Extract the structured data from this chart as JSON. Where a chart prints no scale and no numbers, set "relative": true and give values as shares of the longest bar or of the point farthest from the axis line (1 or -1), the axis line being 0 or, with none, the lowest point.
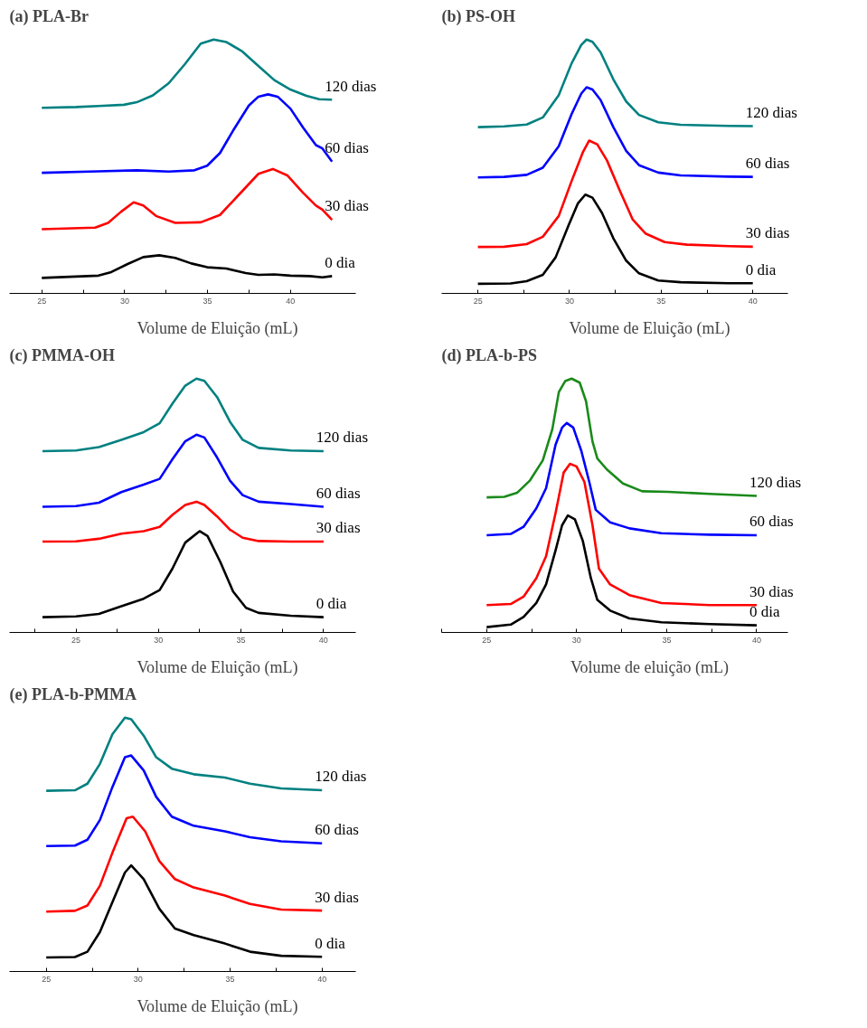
{
  "chart_data": [
    {
      "type": "line",
      "title": "(a) PLA-Br",
      "xlabel": "Volume de Eluição (mL)",
      "relative": true,
      "xlim": [
        23.05,
        43.96
      ],
      "xticks": [
        25,
        {
          "value": 27.5,
          "label": null
        },
        30,
        {
          "value": 32.5,
          "label": null
        },
        35,
        {
          "value": 37.5,
          "label": null
        },
        40
      ],
      "series": [
        {
          "name": "120 dias",
          "color": "#008080",
          "x": [
            25,
            27.07,
            28.42,
            29.96,
            30.73,
            31.7,
            32.66,
            33.63,
            34.59,
            35.37,
            36.14,
            37.1,
            38.07,
            39.03,
            40.0,
            40.97,
            41.74,
            42.51
          ],
          "values": [
            0.731,
            0.734,
            0.738,
            0.743,
            0.753,
            0.78,
            0.828,
            0.903,
            0.984,
            1.0,
            0.99,
            0.953,
            0.896,
            0.84,
            0.803,
            0.778,
            0.765,
            0.763
          ]
        },
        {
          "name": "60 dias",
          "color": "#0000ff",
          "x": [
            25,
            28.42,
            30.73,
            32.66,
            34.21,
            34.98,
            35.75,
            36.53,
            37.49,
            38.07,
            38.65,
            39.23,
            40.0,
            40.77,
            41.54,
            41.93,
            42.51
          ],
          "values": [
            0.475,
            0.481,
            0.485,
            0.48,
            0.485,
            0.503,
            0.553,
            0.64,
            0.74,
            0.775,
            0.784,
            0.775,
            0.728,
            0.653,
            0.584,
            0.571,
            0.519
          ]
        },
        {
          "name": "30 dias",
          "color": "#ff0000",
          "x": [
            25,
            28.22,
            29.0,
            29.77,
            30.54,
            31.12,
            31.89,
            33.05,
            34.59,
            35.75,
            36.91,
            38.07,
            38.94,
            39.81,
            40.77,
            41.54,
            41.93,
            42.51
          ],
          "values": [
            0.253,
            0.259,
            0.278,
            0.321,
            0.359,
            0.346,
            0.305,
            0.278,
            0.28,
            0.309,
            0.39,
            0.471,
            0.49,
            0.465,
            0.396,
            0.346,
            0.33,
            0.29
          ]
        },
        {
          "name": "0 dia",
          "color": "#000000",
          "x": [
            25,
            28.42,
            29.19,
            30.15,
            31.12,
            32.08,
            33.05,
            34.02,
            34.98,
            36.14,
            37.3,
            38.07,
            39.03,
            40.0,
            41.16,
            41.93,
            42.51
          ],
          "values": [
            0.061,
            0.07,
            0.084,
            0.115,
            0.143,
            0.15,
            0.14,
            0.118,
            0.103,
            0.098,
            0.08,
            0.073,
            0.075,
            0.07,
            0.068,
            0.063,
            0.068
          ]
        }
      ]
    },
    {
      "type": "line",
      "title": "(b) PS-OH",
      "xlabel": "Volume de Eluição (mL)",
      "relative": true,
      "xlim": [
        23.02,
        41.93
      ],
      "xticks": [
        25,
        {
          "value": 27.5,
          "label": null
        },
        30,
        {
          "value": 32.5,
          "label": null
        },
        35,
        {
          "value": 37.5,
          "label": null
        },
        40
      ],
      "series": [
        {
          "name": "120 dias",
          "color": "#008080",
          "x": [
            25,
            26.44,
            27.66,
            28.54,
            29.41,
            30.11,
            30.64,
            30.93,
            31.25,
            31.69,
            32.39,
            33.09,
            33.79,
            34.84,
            36.06,
            38.69,
            40
          ],
          "values": [
            0.655,
            0.658,
            0.665,
            0.693,
            0.781,
            0.906,
            0.979,
            1.0,
            0.991,
            0.95,
            0.843,
            0.756,
            0.703,
            0.674,
            0.664,
            0.66,
            0.659
          ]
        },
        {
          "name": "60 dias",
          "color": "#0000ff",
          "x": [
            25,
            26.44,
            27.66,
            28.54,
            29.41,
            30.11,
            30.64,
            30.93,
            31.25,
            31.69,
            32.39,
            33.09,
            33.79,
            34.84,
            36.06,
            38.69,
            40
          ],
          "values": [
            0.457,
            0.459,
            0.467,
            0.495,
            0.58,
            0.706,
            0.787,
            0.812,
            0.803,
            0.762,
            0.655,
            0.561,
            0.505,
            0.476,
            0.465,
            0.46,
            0.459
          ]
        },
        {
          "name": "30 dias",
          "color": "#ff0000",
          "x": [
            25,
            26.44,
            27.66,
            28.54,
            29.41,
            30.11,
            30.72,
            31.07,
            31.51,
            32.04,
            32.74,
            33.44,
            34.14,
            35.19,
            36.41,
            38.69,
            40
          ],
          "values": [
            0.183,
            0.184,
            0.194,
            0.223,
            0.305,
            0.442,
            0.555,
            0.602,
            0.587,
            0.524,
            0.405,
            0.292,
            0.236,
            0.202,
            0.192,
            0.186,
            0.184
          ]
        },
        {
          "name": "0 dia",
          "color": "#000000",
          "x": [
            25,
            26.79,
            27.66,
            28.54,
            29.24,
            29.94,
            30.46,
            30.86,
            31.25,
            31.77,
            32.39,
            33.09,
            33.79,
            34.84,
            36.06,
            38.69,
            40
          ],
          "values": [
            0.038,
            0.039,
            0.048,
            0.073,
            0.142,
            0.267,
            0.355,
            0.389,
            0.377,
            0.317,
            0.217,
            0.129,
            0.079,
            0.051,
            0.044,
            0.04,
            0.04
          ]
        }
      ]
    },
    {
      "type": "line",
      "title": "(c) PMMA-OH",
      "xlabel": "Volume de Eluição (mL)",
      "relative": true,
      "xlim": [
        20.97,
        41.97
      ],
      "xticks": [
        {
          "value": 22.5,
          "label": null
        },
        25,
        {
          "value": 27.5,
          "label": null
        },
        30,
        {
          "value": 32.5,
          "label": null
        },
        35,
        {
          "value": 37.5,
          "label": null
        },
        40
      ],
      "series": [
        {
          "name": "120 dias",
          "color": "#008080",
          "x": [
            22.97,
            25,
            26.39,
            27.75,
            29.1,
            30.07,
            30.84,
            31.62,
            32.3,
            32.78,
            33.55,
            34.33,
            35.1,
            36.07,
            38.01,
            40
          ],
          "values": [
            0.714,
            0.717,
            0.73,
            0.759,
            0.789,
            0.824,
            0.901,
            0.972,
            1.0,
            0.991,
            0.927,
            0.83,
            0.759,
            0.727,
            0.717,
            0.714
          ]
        },
        {
          "name": "60 dias",
          "color": "#0000ff",
          "x": [
            22.97,
            25,
            26.39,
            27.75,
            29.1,
            30.07,
            30.84,
            31.62,
            32.3,
            32.78,
            33.55,
            34.33,
            35.1,
            36.07,
            38.01,
            40
          ],
          "values": [
            0.495,
            0.498,
            0.511,
            0.553,
            0.582,
            0.605,
            0.682,
            0.753,
            0.779,
            0.768,
            0.689,
            0.598,
            0.541,
            0.515,
            0.506,
            0.495
          ]
        },
        {
          "name": "30 dias",
          "color": "#ff0000",
          "x": [
            22.97,
            25,
            26.39,
            27.75,
            29.1,
            30.07,
            30.84,
            31.62,
            32.3,
            32.78,
            33.55,
            34.33,
            35.1,
            36.07,
            38.01,
            40
          ],
          "values": [
            0.358,
            0.359,
            0.369,
            0.389,
            0.399,
            0.416,
            0.463,
            0.502,
            0.515,
            0.502,
            0.457,
            0.405,
            0.373,
            0.36,
            0.358,
            0.358
          ]
        },
        {
          "name": "0 dia",
          "color": "#000000",
          "x": [
            22.97,
            25,
            26.39,
            27.75,
            29.1,
            30.07,
            30.84,
            31.62,
            32.49,
            32.97,
            33.75,
            34.52,
            35.3,
            36.07,
            38.01,
            40
          ],
          "values": [
            0.06,
            0.063,
            0.073,
            0.103,
            0.133,
            0.167,
            0.251,
            0.354,
            0.399,
            0.38,
            0.277,
            0.161,
            0.097,
            0.077,
            0.066,
            0.06
          ]
        }
      ]
    },
    {
      "type": "line",
      "title": "(d) PLA-b-PS",
      "xlabel": "Volume de eluição (mL)",
      "relative": true,
      "xlim": [
        22.5,
        41.75
      ],
      "xticks": [
        {
          "value": 22.5,
          "label": null
        },
        25,
        {
          "value": 27.5,
          "label": null
        },
        30,
        {
          "value": 32.5,
          "label": null
        },
        35,
        {
          "value": 37.5,
          "label": null
        },
        40
      ],
      "series": [
        {
          "name": "120 dias",
          "color": "#1a8a1a",
          "x": [
            25,
            25.98,
            26.69,
            27.41,
            28.12,
            28.65,
            29.01,
            29.36,
            29.72,
            30.17,
            30.52,
            30.88,
            31.15,
            31.68,
            32.57,
            33.64,
            35.07,
            37.38,
            40
          ],
          "values": [
            0.532,
            0.534,
            0.55,
            0.599,
            0.678,
            0.801,
            0.947,
            0.99,
            1.0,
            0.984,
            0.911,
            0.752,
            0.685,
            0.642,
            0.587,
            0.556,
            0.554,
            0.546,
            0.538
          ]
        },
        {
          "name": "60 dias",
          "color": "#0000ff",
          "x": [
            25,
            26.34,
            27.05,
            27.76,
            28.3,
            28.83,
            29.19,
            29.45,
            29.81,
            30.26,
            30.7,
            31.06,
            31.86,
            32.93,
            34.71,
            37.38,
            40
          ],
          "values": [
            0.383,
            0.388,
            0.416,
            0.489,
            0.568,
            0.74,
            0.807,
            0.825,
            0.807,
            0.715,
            0.593,
            0.483,
            0.434,
            0.41,
            0.391,
            0.385,
            0.383
          ]
        },
        {
          "name": "30 dias",
          "color": "#ff0000",
          "x": [
            25,
            26.34,
            27.05,
            27.76,
            28.3,
            28.83,
            29.28,
            29.63,
            29.99,
            30.43,
            30.88,
            31.24,
            31.86,
            32.93,
            34.71,
            37.38,
            40
          ],
          "values": [
            0.108,
            0.112,
            0.141,
            0.214,
            0.3,
            0.471,
            0.63,
            0.664,
            0.654,
            0.593,
            0.422,
            0.251,
            0.189,
            0.147,
            0.116,
            0.108,
            0.108
          ]
        },
        {
          "name": "0 dia",
          "color": "#000000",
          "x": [
            25,
            26.34,
            27.05,
            27.76,
            28.3,
            28.83,
            29.19,
            29.51,
            29.9,
            30.34,
            30.79,
            31.15,
            31.86,
            32.93,
            34.71,
            37.38,
            40
          ],
          "values": [
            0.021,
            0.031,
            0.061,
            0.116,
            0.189,
            0.324,
            0.422,
            0.461,
            0.446,
            0.361,
            0.214,
            0.128,
            0.086,
            0.055,
            0.04,
            0.033,
            0.028
          ]
        }
      ]
    },
    {
      "type": "line",
      "title": "(e) PLA-b-PMMA",
      "xlabel": "Volume de Eluição (mL)",
      "relative": true,
      "xlim": [
        23.0,
        41.85
      ],
      "xticks": [
        25,
        {
          "value": 27.5,
          "label": null
        },
        30,
        {
          "value": 32.5,
          "label": null
        },
        35,
        {
          "value": 37.5,
          "label": null
        },
        40
      ],
      "series": [
        {
          "name": "120 dias",
          "color": "#008080",
          "x": [
            25,
            26.56,
            27.24,
            27.92,
            28.6,
            29.28,
            29.62,
            30.3,
            30.98,
            31.83,
            33.02,
            34.72,
            36.08,
            37.77,
            40
          ],
          "values": [
            0.712,
            0.714,
            0.74,
            0.818,
            0.935,
            1.0,
            0.994,
            0.929,
            0.844,
            0.799,
            0.777,
            0.764,
            0.74,
            0.721,
            0.714
          ]
        },
        {
          "name": "60 dias",
          "color": "#0000ff",
          "x": [
            25,
            26.56,
            27.24,
            27.92,
            28.6,
            29.28,
            29.62,
            30.3,
            30.98,
            31.83,
            32.68,
            33.02,
            34.72,
            36.08,
            37.77,
            40
          ],
          "values": [
            0.494,
            0.496,
            0.519,
            0.597,
            0.727,
            0.844,
            0.851,
            0.792,
            0.688,
            0.61,
            0.584,
            0.574,
            0.552,
            0.529,
            0.513,
            0.505
          ]
        },
        {
          "name": "30 dias",
          "color": "#ff0000",
          "x": [
            25,
            26.56,
            27.24,
            27.92,
            28.6,
            29.37,
            29.71,
            30.38,
            31.15,
            32.0,
            33.02,
            34.72,
            36.08,
            37.77,
            40
          ],
          "values": [
            0.236,
            0.239,
            0.26,
            0.338,
            0.468,
            0.604,
            0.61,
            0.552,
            0.435,
            0.364,
            0.331,
            0.299,
            0.266,
            0.244,
            0.24
          ]
        },
        {
          "name": "0 dia",
          "color": "#000000",
          "x": [
            25,
            26.56,
            27.24,
            27.92,
            28.6,
            29.28,
            29.62,
            30.3,
            31.15,
            32.0,
            33.02,
            34.72,
            36.08,
            37.77,
            40
          ],
          "values": [
            0.055,
            0.057,
            0.078,
            0.156,
            0.273,
            0.39,
            0.418,
            0.364,
            0.247,
            0.169,
            0.143,
            0.11,
            0.078,
            0.062,
            0.058
          ]
        }
      ]
    }
  ]
}
